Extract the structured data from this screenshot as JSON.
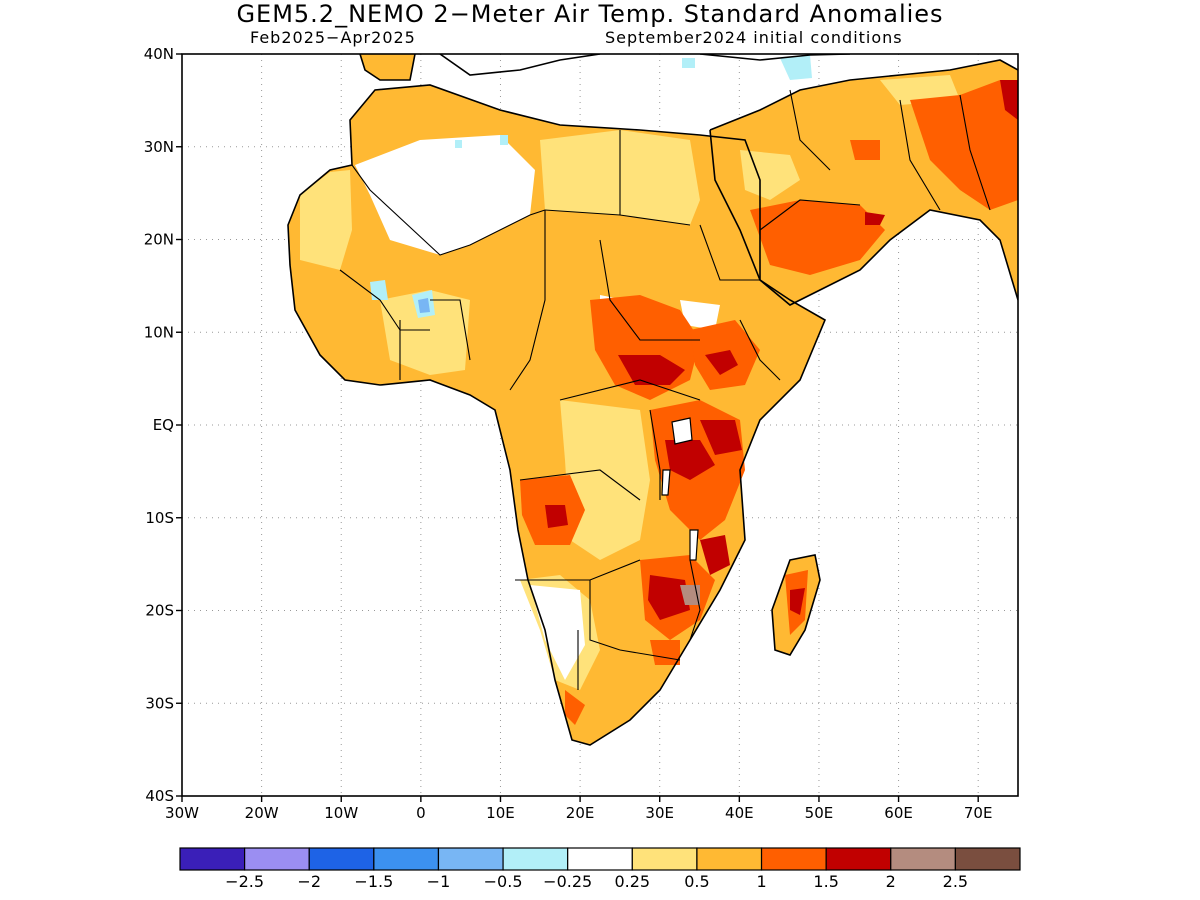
{
  "title": "GEM5.2_NEMO 2−Meter Air Temp. Standard Anomalies",
  "subtitle_left": "Feb2025−Apr2025",
  "subtitle_right": "September2024 initial conditions",
  "map": {
    "lon_range": [
      -30,
      75
    ],
    "lat_range": [
      -40,
      40
    ],
    "land_color": "#ffffff",
    "ocean_color": "#ffffff",
    "x_tick_labels": [
      "30W",
      "20W",
      "10W",
      "0",
      "10E",
      "20E",
      "30E",
      "40E",
      "50E",
      "60E",
      "70E"
    ],
    "y_tick_labels": [
      "40N",
      "30N",
      "20N",
      "10N",
      "EQ",
      "10S",
      "20S",
      "30S",
      "40S"
    ],
    "gridlines": true
  },
  "legend": {
    "colors": [
      "#3a1fb8",
      "#9b8ef2",
      "#1e63e6",
      "#3c91f0",
      "#78b6f4",
      "#b2eff8",
      "#ffffff",
      "#ffe27a",
      "#ffb933",
      "#ff5f00",
      "#c10000",
      "#b48c7f",
      "#7a4e3f"
    ],
    "labels": [
      "−2.5",
      "−2",
      "−1.5",
      "−1",
      "−0.5",
      "−0.25",
      "0.25",
      "0.5",
      "1",
      "1.5",
      "2",
      "2.5"
    ]
  }
}
